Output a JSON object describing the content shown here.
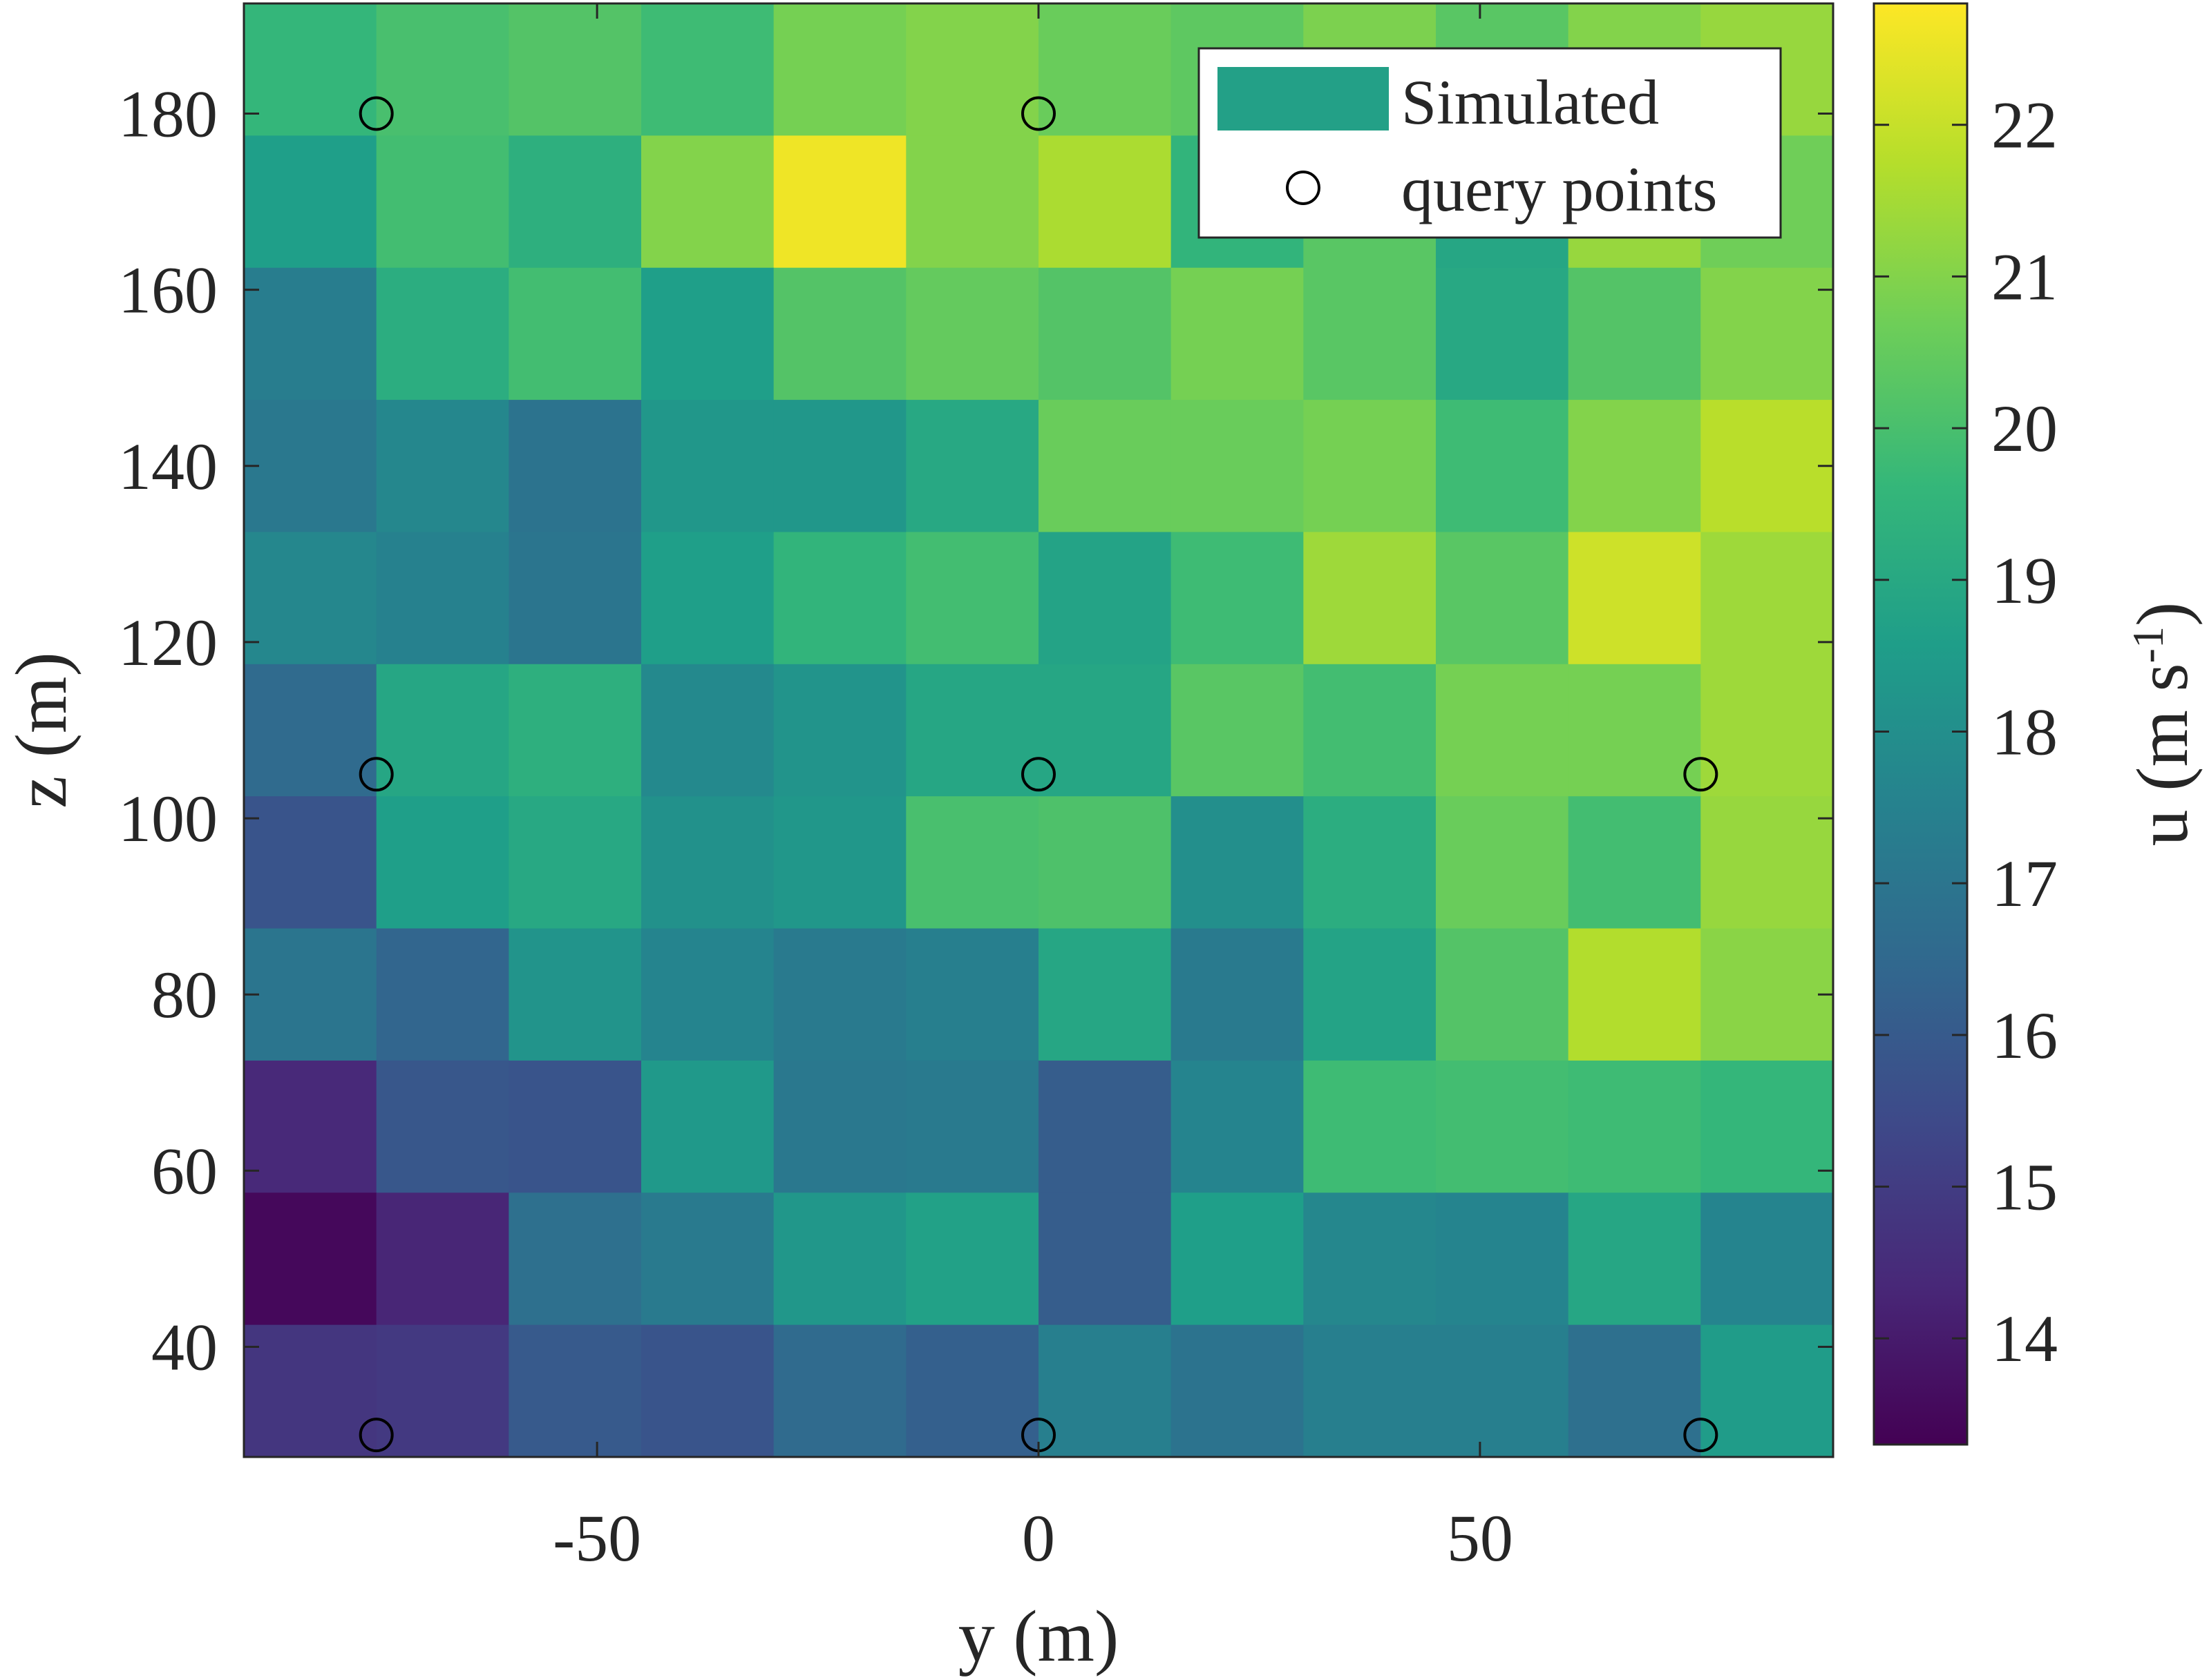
{
  "chart_data": {
    "type": "heatmap",
    "title": "",
    "xlabel": "y (m)",
    "ylabel": "z (m)",
    "xlim": [
      -90,
      90
    ],
    "ylim": [
      27.5,
      192.5
    ],
    "x_ticks": [
      -50,
      0,
      50
    ],
    "y_ticks": [
      40,
      60,
      80,
      100,
      120,
      140,
      160,
      180
    ],
    "grid": false,
    "cell_x_edges": [
      -90,
      -75,
      -60,
      -45,
      -30,
      -15,
      0,
      15,
      30,
      45,
      60,
      75,
      90
    ],
    "cell_z_edges": [
      27.5,
      42.5,
      57.5,
      72.5,
      87.5,
      102.5,
      117.5,
      132.5,
      147.5,
      162.5,
      177.5,
      192.5
    ],
    "rows_top_to_bottom": [
      [
        19.6,
        20.0,
        20.2,
        19.8,
        20.8,
        21.0,
        20.6,
        20.4,
        20.9,
        20.3,
        21.0,
        21.3
      ],
      [
        18.6,
        19.9,
        19.3,
        21.0,
        22.6,
        21.0,
        21.6,
        19.5,
        20.3,
        18.9,
        21.3,
        20.7
      ],
      [
        17.3,
        19.2,
        19.9,
        18.6,
        20.2,
        20.5,
        20.2,
        20.8,
        20.3,
        19.0,
        20.2,
        21.0
      ],
      [
        17.1,
        17.7,
        16.9,
        18.3,
        18.3,
        19.0,
        20.6,
        20.6,
        20.8,
        19.8,
        21.0,
        21.8
      ],
      [
        17.7,
        17.5,
        17.0,
        18.6,
        19.5,
        19.9,
        18.8,
        19.8,
        21.4,
        20.3,
        22.1,
        21.4
      ],
      [
        16.6,
        18.9,
        19.3,
        17.8,
        18.2,
        18.9,
        18.9,
        20.3,
        19.9,
        20.8,
        20.8,
        21.4
      ],
      [
        15.8,
        18.6,
        19.0,
        18.1,
        18.3,
        20.0,
        20.1,
        18.0,
        19.2,
        20.6,
        19.9,
        21.3
      ],
      [
        17.0,
        16.4,
        18.2,
        17.6,
        17.2,
        17.4,
        18.9,
        17.2,
        18.8,
        20.2,
        21.7,
        21.1
      ],
      [
        14.4,
        15.9,
        15.8,
        18.4,
        17.1,
        17.2,
        16.1,
        17.6,
        19.8,
        19.9,
        19.8,
        19.6
      ],
      [
        13.5,
        14.3,
        16.8,
        17.2,
        18.3,
        18.7,
        16.1,
        18.6,
        17.7,
        17.6,
        18.9,
        17.6
      ],
      [
        14.8,
        14.9,
        16.0,
        15.8,
        16.6,
        16.2,
        17.4,
        16.9,
        17.4,
        17.4,
        16.8,
        18.5
      ]
    ],
    "query_points": [
      {
        "y": -75,
        "z": 180
      },
      {
        "y": 0,
        "z": 180
      },
      {
        "y": -75,
        "z": 105
      },
      {
        "y": 0,
        "z": 105
      },
      {
        "y": 75,
        "z": 105
      },
      {
        "y": -75,
        "z": 30
      },
      {
        "y": 0,
        "z": 30
      },
      {
        "y": 75,
        "z": 30
      }
    ],
    "legend": {
      "placement": "top-right",
      "entries": [
        "Simulated",
        "query points"
      ]
    },
    "colorbar": {
      "label_main": "u (m s",
      "label_sup": "-1",
      "label_close": ")",
      "range": [
        13.3,
        22.8
      ],
      "ticks": [
        14,
        15,
        16,
        17,
        18,
        19,
        20,
        21,
        22
      ],
      "colormap": "viridis"
    },
    "colors": {
      "legend_patch": "#23a087",
      "axis": "#262626",
      "marker_edge": "#000000"
    }
  }
}
